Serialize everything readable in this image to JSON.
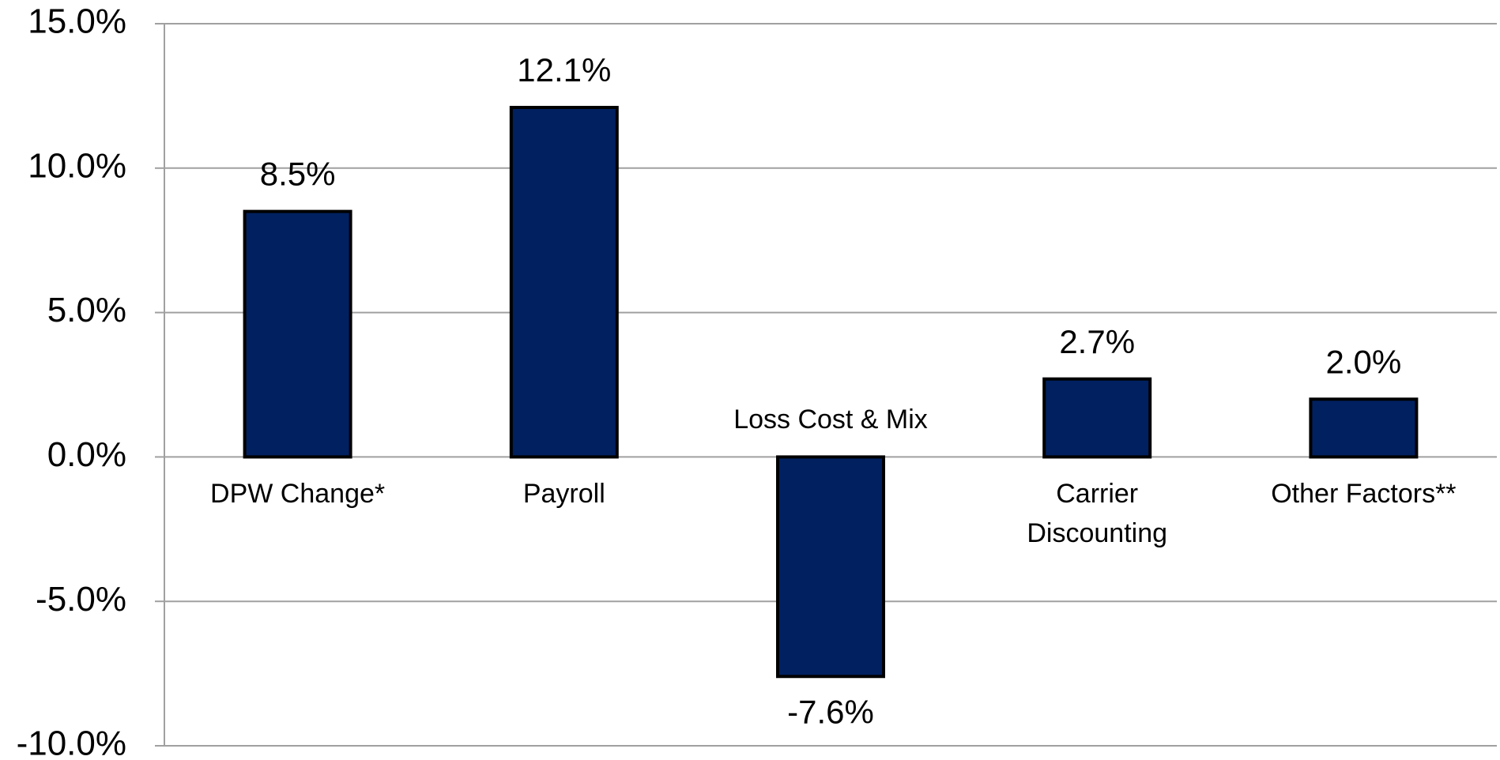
{
  "chart_data": {
    "type": "bar",
    "categories": [
      "DPW Change*",
      "Payroll",
      "Loss Cost & Mix",
      "Carrier Discounting",
      "Other Factors**"
    ],
    "values": [
      8.5,
      12.1,
      -7.6,
      2.7,
      2.0
    ],
    "value_labels": [
      "8.5%",
      "12.1%",
      "-7.6%",
      "2.7%",
      "2.0%"
    ],
    "color": "#002060",
    "ylim": [
      -10,
      15
    ],
    "yticks": [
      {
        "value": -10,
        "label": "-10.0%"
      },
      {
        "value": -5,
        "label": "-5.0%"
      },
      {
        "value": 0,
        "label": "0.0%"
      },
      {
        "value": 5,
        "label": "5.0%"
      },
      {
        "value": 10,
        "label": "10.0%"
      },
      {
        "value": 15,
        "label": "15.0%"
      }
    ],
    "grid": true
  }
}
